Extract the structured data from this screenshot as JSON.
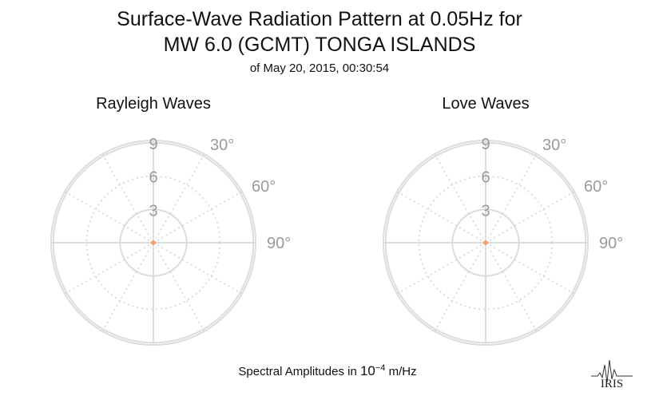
{
  "header": {
    "title_line1": "Surface-Wave Radiation Pattern at 0.05Hz for",
    "title_line2": "MW 6.0 (GCMT) TONGA ISLANDS",
    "subtitle": "of May 20, 2015, 00:30:54"
  },
  "footer": {
    "prefix": "Spectral Amplitudes in ",
    "base": "10",
    "exponent": "−4",
    "suffix": " m/Hz"
  },
  "logo": {
    "icon": "iris-logo-icon",
    "text": "IRIS"
  },
  "colors": {
    "grid": "#dcdcdc",
    "label": "#9a9a9a",
    "origin": "#f4a06b"
  },
  "chart_data": [
    {
      "type": "polar",
      "title": "Rayleigh Waves",
      "radial_ticks": [
        3,
        6,
        9
      ],
      "radial_tick_labels": [
        "3",
        "6",
        "9"
      ],
      "rmax": 9.2,
      "angle_ticks": [
        30,
        60,
        90
      ],
      "angle_tick_labels": [
        "30°",
        "60°",
        "90°"
      ],
      "angular_grid_step": 30,
      "series": [
        {
          "values": []
        }
      ]
    },
    {
      "type": "polar",
      "title": "Love Waves",
      "radial_ticks": [
        3,
        6,
        9
      ],
      "radial_tick_labels": [
        "3",
        "6",
        "9"
      ],
      "rmax": 9.2,
      "angle_ticks": [
        30,
        60,
        90
      ],
      "angle_tick_labels": [
        "30°",
        "60°",
        "90°"
      ],
      "angular_grid_step": 30,
      "series": [
        {
          "values": []
        }
      ]
    }
  ]
}
